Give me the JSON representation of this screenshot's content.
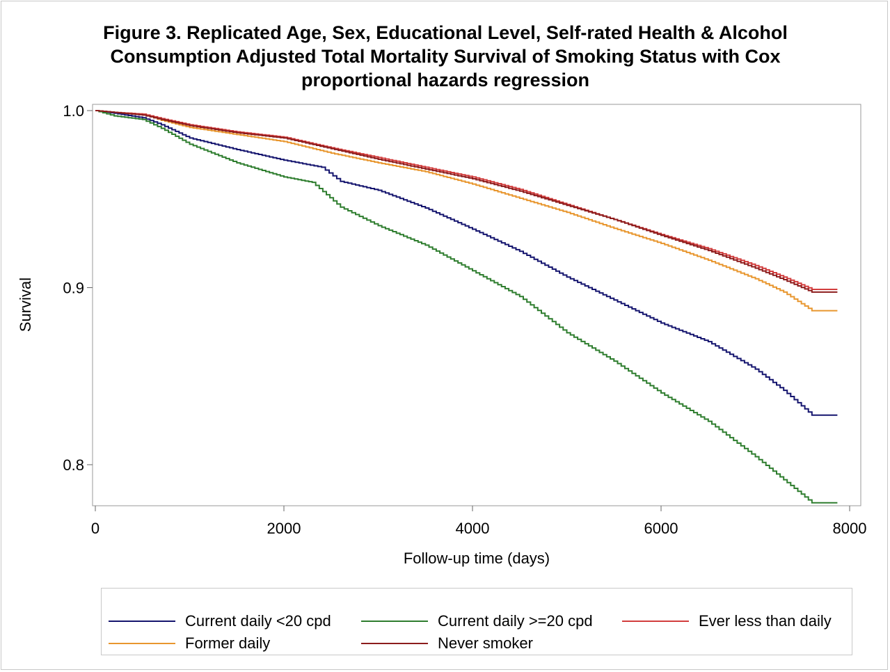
{
  "chart_data": {
    "type": "line",
    "title_lines": [
      "Figure 3. Replicated Age, Sex, Educational Level, Self-rated Health & Alcohol",
      "Consumption Adjusted Total Mortality Survival of Smoking Status with Cox",
      "proportional hazards regression"
    ],
    "xlabel": "Follow-up time (days)",
    "ylabel": "Survival",
    "xlim": [
      0,
      8000
    ],
    "ylim": [
      0.776,
      1.0
    ],
    "x_ticks": [
      "0",
      "2000",
      "4000",
      "6000",
      "8000"
    ],
    "y_ticks": [
      "0.8",
      "0.9",
      "1.0"
    ],
    "grid": false,
    "legend_position": "bottom",
    "series": [
      {
        "name": "Current daily <20 cpd",
        "color": "#14146e",
        "x": [
          0,
          200,
          500,
          700,
          1000,
          1500,
          2000,
          2400,
          2600,
          3000,
          3500,
          4000,
          4500,
          5000,
          5500,
          6000,
          6500,
          7000,
          7300,
          7600,
          7870
        ],
        "y": [
          1.0,
          0.9985,
          0.996,
          0.992,
          0.9845,
          0.978,
          0.972,
          0.968,
          0.96,
          0.955,
          0.945,
          0.933,
          0.9205,
          0.906,
          0.893,
          0.88,
          0.8695,
          0.854,
          0.842,
          0.828,
          0.828
        ]
      },
      {
        "name": "Current daily >=20 cpd",
        "color": "#2e7d2e",
        "x": [
          0,
          200,
          500,
          700,
          1000,
          1500,
          2000,
          2300,
          2600,
          3000,
          3500,
          4000,
          4500,
          5000,
          5500,
          6000,
          6500,
          7000,
          7300,
          7600,
          7870
        ],
        "y": [
          1.0,
          0.997,
          0.995,
          0.99,
          0.981,
          0.9705,
          0.9625,
          0.9595,
          0.9455,
          0.935,
          0.924,
          0.9095,
          0.895,
          0.8745,
          0.8585,
          0.8405,
          0.8245,
          0.8045,
          0.7915,
          0.7785,
          0.7785
        ]
      },
      {
        "name": "Ever less than daily",
        "color": "#d23c3c",
        "x": [
          0,
          200,
          500,
          700,
          1000,
          1500,
          2000,
          2500,
          3000,
          3500,
          4000,
          4500,
          5000,
          5500,
          6000,
          6500,
          7000,
          7300,
          7600,
          7870
        ],
        "y": [
          1.0,
          0.999,
          0.998,
          0.9955,
          0.992,
          0.988,
          0.985,
          0.979,
          0.9735,
          0.968,
          0.9625,
          0.9555,
          0.947,
          0.9385,
          0.93,
          0.922,
          0.9125,
          0.906,
          0.899,
          0.899
        ]
      },
      {
        "name": "Former daily",
        "color": "#e8962e",
        "x": [
          0,
          200,
          500,
          700,
          1000,
          1500,
          2000,
          2500,
          3000,
          3500,
          4000,
          4500,
          5000,
          5500,
          6000,
          6500,
          7000,
          7300,
          7600,
          7870
        ],
        "y": [
          1.0,
          0.999,
          0.998,
          0.9945,
          0.9905,
          0.9865,
          0.9825,
          0.976,
          0.9705,
          0.9655,
          0.9585,
          0.9505,
          0.9425,
          0.9335,
          0.925,
          0.9155,
          0.905,
          0.8975,
          0.887,
          0.887
        ]
      },
      {
        "name": "Never smoker",
        "color": "#8c1c1c",
        "x": [
          0,
          200,
          500,
          700,
          1000,
          1500,
          2000,
          2500,
          3000,
          3500,
          4000,
          4500,
          5000,
          5500,
          6000,
          6500,
          7000,
          7300,
          7600,
          7870
        ],
        "y": [
          1.0,
          0.999,
          0.9975,
          0.995,
          0.9915,
          0.9875,
          0.9845,
          0.9785,
          0.9725,
          0.967,
          0.9615,
          0.9545,
          0.9465,
          0.9385,
          0.9295,
          0.921,
          0.911,
          0.9045,
          0.8975,
          0.8975
        ]
      }
    ]
  }
}
